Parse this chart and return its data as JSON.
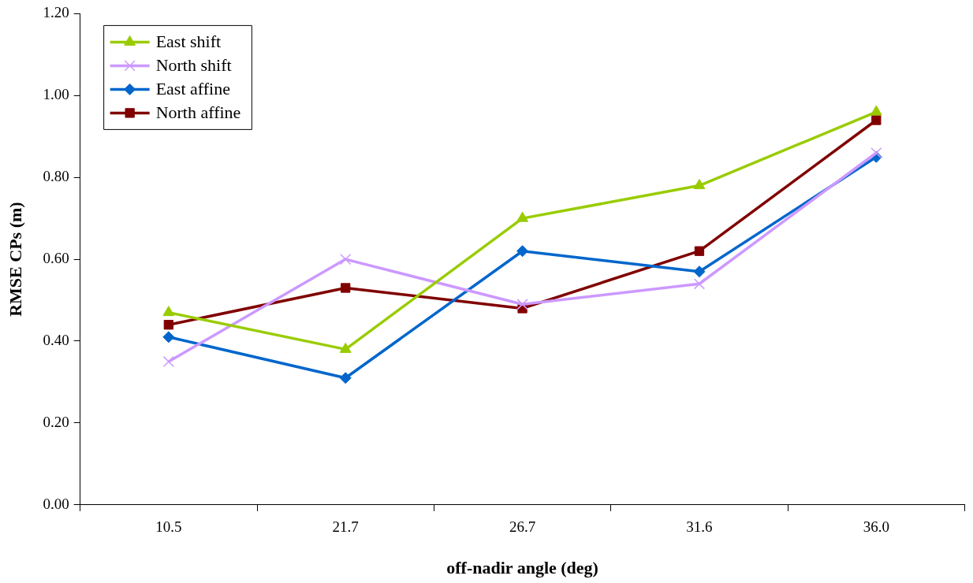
{
  "chart_data": {
    "type": "line",
    "xlabel": "off-nadir angle (deg)",
    "ylabel": "RMSE CPs (m)",
    "categories": [
      "10.5",
      "21.7",
      "26.7",
      "31.6",
      "36.0"
    ],
    "ylim": [
      0,
      1.2
    ],
    "yticks": [
      {
        "value": 0,
        "label": "0.00"
      },
      {
        "value": 0.2,
        "label": "0.20"
      },
      {
        "value": 0.4,
        "label": "0.40"
      },
      {
        "value": 0.6,
        "label": "0.60"
      },
      {
        "value": 0.8,
        "label": "0.80"
      },
      {
        "value": 1,
        "label": "1.00"
      },
      {
        "value": 1.2,
        "label": "1.20"
      }
    ],
    "grid": false,
    "legend": "top left",
    "line_style": "solid",
    "series": [
      {
        "name": "East shift",
        "color": "#99cc00",
        "marker": "triangle",
        "values": [
          0.47,
          0.38,
          0.7,
          0.78,
          0.96
        ]
      },
      {
        "name": "North shift",
        "color": "#cc99ff",
        "marker": "cross",
        "values": [
          0.35,
          0.6,
          0.49,
          0.54,
          0.86
        ]
      },
      {
        "name": "East affine",
        "color": "#0066cc",
        "marker": "diamond",
        "values": [
          0.41,
          0.31,
          0.62,
          0.57,
          0.85
        ]
      },
      {
        "name": "North affine",
        "color": "#800000",
        "marker": "square",
        "values": [
          0.44,
          0.53,
          0.48,
          0.62,
          0.94
        ]
      }
    ]
  }
}
